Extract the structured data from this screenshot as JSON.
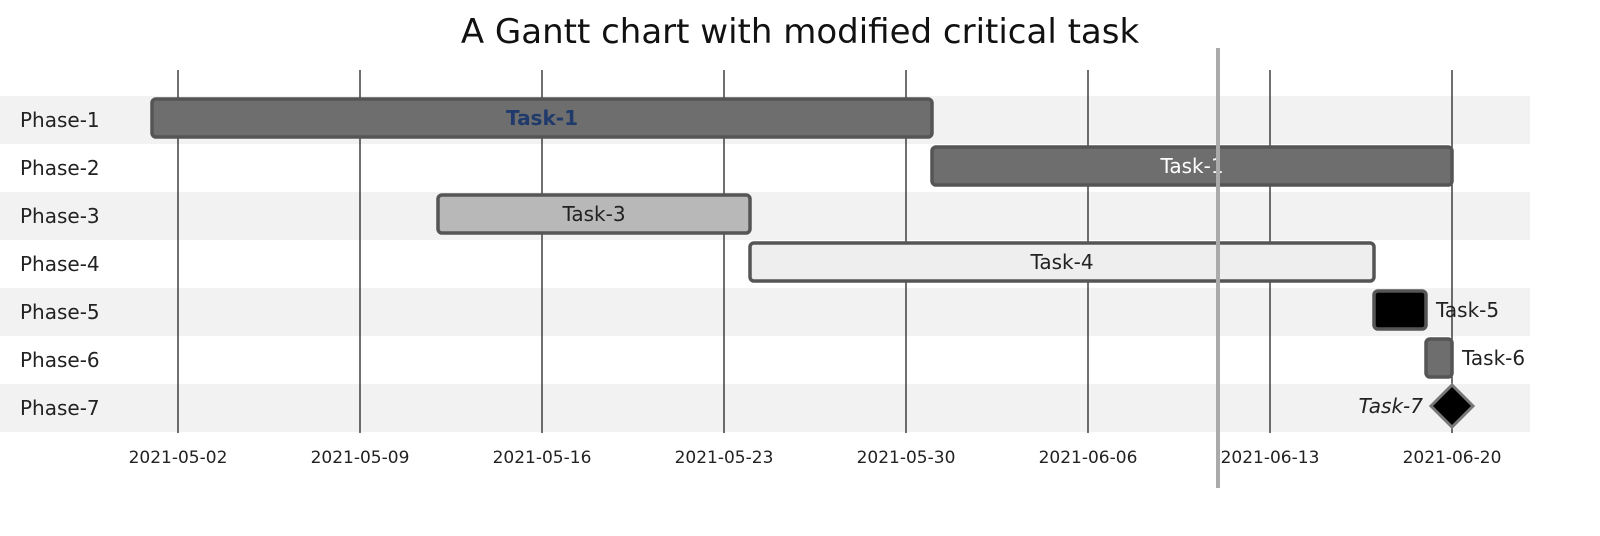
{
  "chart_data": {
    "type": "gantt",
    "title": "A Gantt chart with modified critical task",
    "xlabel": "",
    "ylabel": "",
    "x_ticks": [
      "2021-05-02",
      "2021-05-09",
      "2021-05-16",
      "2021-05-23",
      "2021-05-30",
      "2021-06-06",
      "2021-06-13",
      "2021-06-20"
    ],
    "x_range": [
      "2021-04-29",
      "2021-06-23"
    ],
    "grid": "vertical",
    "today_marker": "2021-06-11",
    "categories": [
      "Phase-1",
      "Phase-2",
      "Phase-3",
      "Phase-4",
      "Phase-5",
      "Phase-6",
      "Phase-7"
    ],
    "tasks": [
      {
        "phase": "Phase-1",
        "label": "Task-1",
        "start": "2021-05-01",
        "end": "2021-05-31",
        "style": "critical",
        "fill": "#6e6e6e",
        "text_color": "#1f3a6b",
        "label_position": "inside"
      },
      {
        "phase": "Phase-2",
        "label": "Task-1",
        "start": "2021-05-31",
        "end": "2021-06-20",
        "style": "active",
        "fill": "#6e6e6e",
        "text_color": "#ffffff",
        "label_position": "inside"
      },
      {
        "phase": "Phase-3",
        "label": "Task-3",
        "start": "2021-05-12",
        "end": "2021-05-24",
        "style": "normal",
        "fill": "#b8b8b8",
        "text_color": "#222222",
        "label_position": "inside"
      },
      {
        "phase": "Phase-4",
        "label": "Task-4",
        "start": "2021-05-24",
        "end": "2021-06-17",
        "style": "done",
        "fill": "#eeeeee",
        "text_color": "#222222",
        "label_position": "inside"
      },
      {
        "phase": "Phase-5",
        "label": "Task-5",
        "start": "2021-06-17",
        "end": "2021-06-19",
        "style": "black",
        "fill": "#000000",
        "text_color": "#222222",
        "label_position": "right"
      },
      {
        "phase": "Phase-6",
        "label": "Task-6",
        "start": "2021-06-19",
        "end": "2021-06-20",
        "style": "normal",
        "fill": "#6e6e6e",
        "text_color": "#222222",
        "label_position": "right"
      },
      {
        "phase": "Phase-7",
        "label": "Task-7",
        "start": "2021-06-20",
        "end": "2021-06-20",
        "style": "milestone",
        "fill": "#000000",
        "text_color": "#222222",
        "label_position": "left"
      }
    ]
  },
  "colors": {
    "row_band": "#f2f2f2",
    "gridline": "#222222",
    "today_line": "#aaaaaa",
    "bar_border": "#555555"
  }
}
